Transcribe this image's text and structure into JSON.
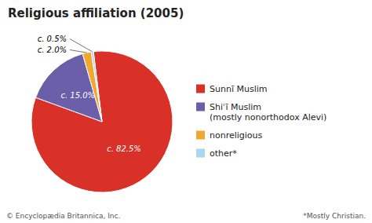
{
  "chart_data": {
    "type": "pie",
    "title": "Religious affiliation (2005)",
    "categories": [
      "Sunnī Muslim",
      "Shiʿī Muslim\n(mostly nonorthodox Alevi)",
      "nonreligious",
      "other*"
    ],
    "values": [
      82.5,
      15.0,
      2.0,
      0.5
    ],
    "value_labels": [
      "c. 82.5%",
      "c. 15.0%",
      "c. 2.0%",
      "c. 0.5%"
    ],
    "colors": [
      "#d93027",
      "#6b5faa",
      "#f0a830",
      "#a8d8ea"
    ],
    "data_labels": true,
    "legend": "right",
    "annotations": [
      "© Encyclopædia Britannica, Inc.",
      "*Mostly Christian."
    ]
  }
}
